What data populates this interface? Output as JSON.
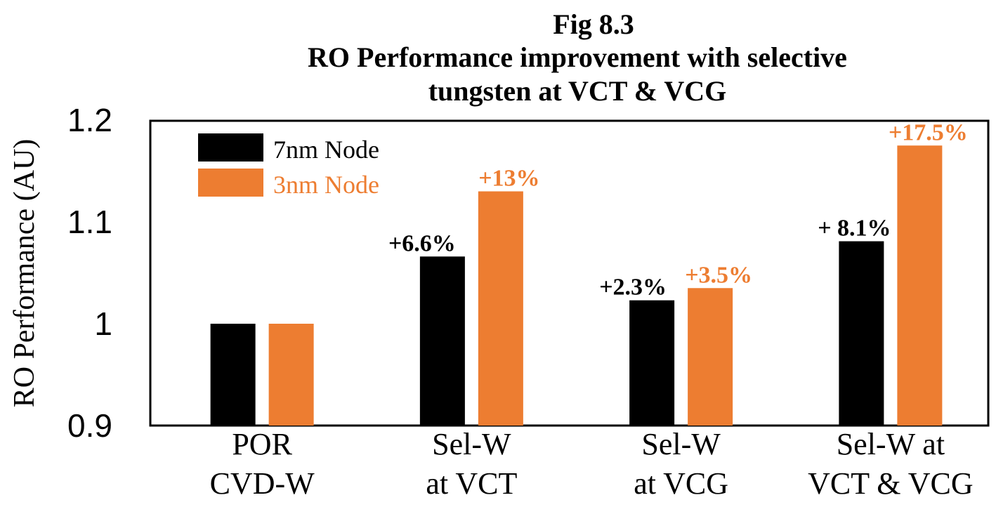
{
  "chart_data": {
    "type": "bar",
    "title": [
      "Fig 8.3",
      "RO Performance improvement with selective",
      "tungsten at VCT &  VCG"
    ],
    "ylabel": "RO Performance (AU)",
    "xlabel": "",
    "ylim": [
      0.9,
      1.2
    ],
    "yticks": [
      "0.9",
      "1",
      "1.1",
      "1.2"
    ],
    "ytick_values": [
      0.9,
      1.0,
      1.1,
      1.2
    ],
    "grid": false,
    "legend_position": "top-left",
    "categories": [
      [
        "POR",
        "CVD-W"
      ],
      [
        "Sel-W",
        "at VCT"
      ],
      [
        "Sel-W",
        "at VCG"
      ],
      [
        "Sel-W at",
        "VCT & VCG"
      ]
    ],
    "series": [
      {
        "name": "7nm Node",
        "color": "#000000",
        "values": [
          1.0,
          1.066,
          1.023,
          1.081
        ],
        "labels": [
          "",
          "+6.6%",
          "+2.3%",
          "+ 8.1%"
        ]
      },
      {
        "name": "3nm Node",
        "color": "#ed7d31",
        "values": [
          1.0,
          1.13,
          1.035,
          1.175
        ],
        "labels": [
          "",
          "+13%",
          "+3.5%",
          "+17.5%"
        ]
      }
    ]
  }
}
